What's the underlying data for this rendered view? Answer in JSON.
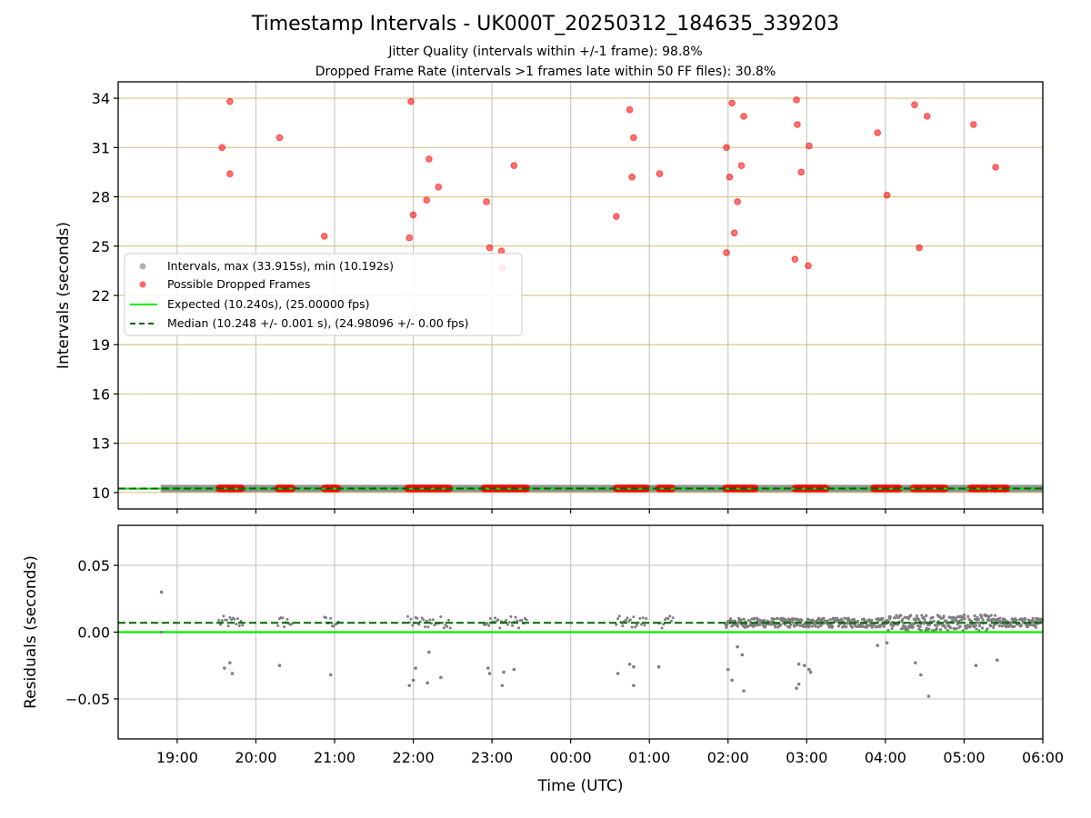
{
  "figure": {
    "title": "Timestamp Intervals - UK000T_20250312_184635_339203",
    "subtitle_lines": [
      "Jitter Quality (intervals within +/-1 frame): 98.8%",
      "Dropped Frame Rate (intervals >1 frames late within 50 FF files): 30.8%"
    ]
  },
  "chart_data": [
    {
      "type": "scatter",
      "panel": "intervals",
      "xlabel": "",
      "ylabel": "Intervals (seconds)",
      "xlim_hours": [
        18.25,
        30.0
      ],
      "ylim": [
        9.0,
        35.0
      ],
      "yticks": [
        10,
        13,
        16,
        19,
        22,
        25,
        28,
        31,
        34
      ],
      "ytick_labels": [
        "10",
        "13",
        "16",
        "19",
        "22",
        "25",
        "28",
        "31",
        "34"
      ],
      "grid": "horizontal tan lines at y ticks, vertical gray lines at x ticks",
      "legend_position": "center-left",
      "legend": [
        {
          "label": "Intervals, max (33.915s), min (10.192s)",
          "marker": "gray-dot"
        },
        {
          "label": "Possible Dropped Frames",
          "marker": "red-dot"
        },
        {
          "label": "Expected (10.240s), (25.00000 fps)",
          "marker": "solid-line"
        },
        {
          "label": "Median (10.248 +/- 0.001 s), (24.98096 +/- 0.00 fps)",
          "marker": "dashed-line"
        }
      ],
      "series": [
        {
          "name": "Intervals, max (33.915s), min (10.192s)",
          "color": "#7f7f7f",
          "note_x_range_hours": [
            18.79,
            30.0
          ],
          "y_typical": 10.248
        },
        {
          "name": "Possible Dropped Frames",
          "color": "#ff0000",
          "points": [
            [
              19.57,
              31.0
            ],
            [
              19.67,
              33.8
            ],
            [
              19.67,
              29.4
            ],
            [
              20.3,
              31.6
            ],
            [
              20.87,
              25.6
            ],
            [
              21.97,
              33.8
            ],
            [
              21.95,
              25.5
            ],
            [
              22.0,
              26.9
            ],
            [
              22.17,
              27.8
            ],
            [
              22.2,
              30.3
            ],
            [
              22.32,
              28.6
            ],
            [
              22.93,
              27.7
            ],
            [
              22.97,
              24.9
            ],
            [
              23.12,
              24.7
            ],
            [
              23.13,
              23.7
            ],
            [
              23.28,
              29.9
            ],
            [
              24.58,
              26.8
            ],
            [
              24.75,
              33.3
            ],
            [
              24.8,
              31.6
            ],
            [
              24.78,
              29.2
            ],
            [
              25.13,
              29.4
            ],
            [
              25.98,
              24.6
            ],
            [
              25.98,
              31.0
            ],
            [
              26.02,
              29.2
            ],
            [
              26.05,
              33.7
            ],
            [
              26.08,
              25.8
            ],
            [
              26.12,
              27.7
            ],
            [
              26.17,
              29.9
            ],
            [
              26.2,
              32.9
            ],
            [
              26.85,
              24.2
            ],
            [
              26.87,
              33.9
            ],
            [
              26.88,
              32.4
            ],
            [
              26.93,
              29.5
            ],
            [
              27.02,
              23.8
            ],
            [
              27.03,
              31.1
            ],
            [
              27.9,
              31.9
            ],
            [
              28.02,
              28.1
            ],
            [
              28.37,
              33.6
            ],
            [
              28.43,
              24.9
            ],
            [
              28.53,
              32.9
            ],
            [
              29.12,
              32.4
            ],
            [
              29.4,
              29.8
            ]
          ],
          "baseline_clusters_hours": [
            [
              19.53,
              19.83
            ],
            [
              20.28,
              20.47
            ],
            [
              20.87,
              21.05
            ],
            [
              21.93,
              22.47
            ],
            [
              22.9,
              23.45
            ],
            [
              24.58,
              24.97
            ],
            [
              25.12,
              25.3
            ],
            [
              25.97,
              26.35
            ],
            [
              26.85,
              27.25
            ],
            [
              27.85,
              28.18
            ],
            [
              28.35,
              28.77
            ],
            [
              29.08,
              29.3
            ],
            [
              29.35,
              29.55
            ]
          ]
        },
        {
          "name": "Expected (10.240s), (25.00000 fps)",
          "color": "#00ee00",
          "y": 10.24
        },
        {
          "name": "Median (10.248 +/- 0.001 s), (24.98096 +/- 0.00 fps)",
          "color": "#006400",
          "y": 10.248
        }
      ]
    },
    {
      "type": "scatter",
      "panel": "residuals",
      "xlabel": "Time (UTC)",
      "ylabel": "Residuals (seconds)",
      "xlim_hours": [
        18.25,
        30.0
      ],
      "ylim": [
        -0.08,
        0.08
      ],
      "xticks_hours": [
        19,
        20,
        21,
        22,
        23,
        24,
        25,
        26,
        27,
        28,
        29,
        30
      ],
      "xtick_labels": [
        "19:00",
        "20:00",
        "21:00",
        "22:00",
        "23:00",
        "00:00",
        "01:00",
        "02:00",
        "03:00",
        "04:00",
        "05:00",
        "06:00"
      ],
      "yticks": [
        -0.05,
        0.0,
        0.05
      ],
      "ytick_labels": [
        "−0.05",
        "0.00",
        "0.05"
      ],
      "grid": "gray lines at x and y ticks",
      "series": [
        {
          "name": "Residuals",
          "color": "#7f7f7f",
          "outliers": [
            [
              18.8,
              0.03
            ],
            [
              18.8,
              0.0
            ],
            [
              19.6,
              -0.027
            ],
            [
              19.67,
              -0.023
            ],
            [
              19.7,
              -0.031
            ],
            [
              20.3,
              -0.025
            ],
            [
              20.95,
              -0.032
            ],
            [
              21.95,
              -0.04
            ],
            [
              22.0,
              -0.036
            ],
            [
              22.03,
              -0.027
            ],
            [
              22.18,
              -0.038
            ],
            [
              22.2,
              -0.015
            ],
            [
              22.35,
              -0.034
            ],
            [
              22.95,
              -0.027
            ],
            [
              22.97,
              -0.031
            ],
            [
              23.13,
              -0.04
            ],
            [
              23.15,
              -0.03
            ],
            [
              23.28,
              -0.028
            ],
            [
              24.6,
              -0.031
            ],
            [
              24.75,
              -0.024
            ],
            [
              24.8,
              -0.026
            ],
            [
              24.8,
              -0.04
            ],
            [
              25.12,
              -0.026
            ],
            [
              26.0,
              -0.028
            ],
            [
              26.05,
              -0.036
            ],
            [
              26.12,
              -0.011
            ],
            [
              26.18,
              -0.017
            ],
            [
              26.2,
              -0.044
            ],
            [
              26.87,
              -0.042
            ],
            [
              26.9,
              -0.024
            ],
            [
              26.9,
              -0.039
            ],
            [
              26.97,
              -0.025
            ],
            [
              27.03,
              -0.028
            ],
            [
              27.05,
              -0.03
            ],
            [
              27.9,
              -0.01
            ],
            [
              28.02,
              -0.008
            ],
            [
              28.38,
              -0.023
            ],
            [
              28.45,
              -0.032
            ],
            [
              28.55,
              -0.048
            ],
            [
              29.15,
              -0.025
            ],
            [
              29.42,
              -0.021
            ]
          ],
          "typical_band": [
            0.003,
            0.012
          ]
        },
        {
          "name": "Expected",
          "color": "#00ee00",
          "y": 0.0
        },
        {
          "name": "Median",
          "color": "#006400",
          "y": 0.007
        }
      ]
    }
  ]
}
